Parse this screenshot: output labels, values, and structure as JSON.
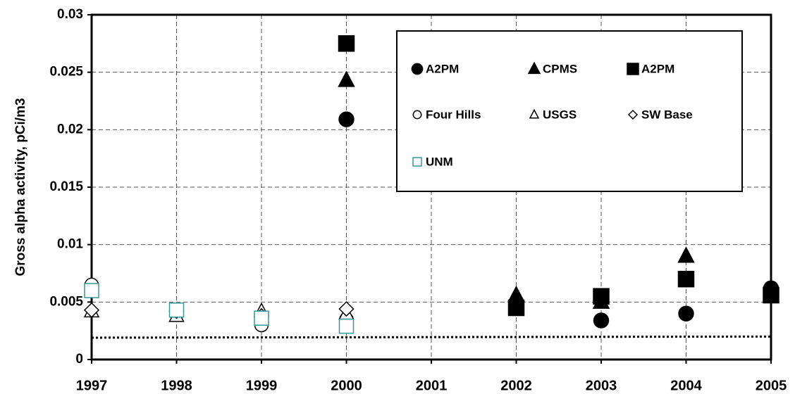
{
  "chart_data": {
    "type": "scatter",
    "y_label": "Gross alpha activity, pCi/m3",
    "xlim": [
      1997,
      2005
    ],
    "xticks": [
      1997,
      1998,
      1999,
      2000,
      2001,
      2002,
      2003,
      2004,
      2005
    ],
    "ylim": [
      0,
      0.03
    ],
    "yticks": [
      0,
      0.005,
      0.01,
      0.015,
      0.02,
      0.025,
      0.03
    ],
    "grid": true,
    "legend": "upper right",
    "series": [
      {
        "name": "A2PM",
        "marker": "circle",
        "filled": true,
        "color": "#000000",
        "x": [
          2000,
          2003,
          2004,
          2005
        ],
        "values": [
          0.0209,
          0.0034,
          0.004,
          0.0062
        ]
      },
      {
        "name": "CPMS",
        "marker": "triangle",
        "filled": true,
        "color": "#000000",
        "x": [
          2000,
          2002,
          2003,
          2004
        ],
        "values": [
          0.0243,
          0.0056,
          0.005,
          0.009
        ]
      },
      {
        "name": "A2PM",
        "marker": "square",
        "filled": true,
        "color": "#000000",
        "x": [
          2000,
          2002,
          2003,
          2004,
          2005
        ],
        "values": [
          0.0275,
          0.0045,
          0.0055,
          0.007,
          0.0056
        ]
      },
      {
        "name": "Four Hills",
        "marker": "circle",
        "filled": false,
        "color": "#000000",
        "x": [
          1997,
          1998,
          1999,
          2000
        ],
        "values": [
          0.0065,
          0.004,
          0.003,
          0.0035
        ]
      },
      {
        "name": "USGS",
        "marker": "triangle",
        "filled": false,
        "color": "#000000",
        "x": [
          1997,
          1998,
          1999,
          2000
        ],
        "values": [
          0.0042,
          0.0038,
          0.0042,
          0.004
        ]
      },
      {
        "name": "SW Base",
        "marker": "diamond",
        "filled": false,
        "color": "#000000",
        "x": [
          1997,
          1998,
          1999,
          2000
        ],
        "values": [
          0.0043,
          0.0042,
          0.0038,
          0.0044
        ]
      },
      {
        "name": "UNM",
        "marker": "square",
        "filled": false,
        "color": "#339999",
        "x": [
          1997,
          1998,
          1999,
          2000
        ],
        "values": [
          0.006,
          0.0043,
          0.0036,
          0.0029
        ]
      }
    ],
    "threshold_line": {
      "x": [
        1997,
        2005
      ],
      "values": [
        0.0019,
        0.002
      ]
    }
  }
}
